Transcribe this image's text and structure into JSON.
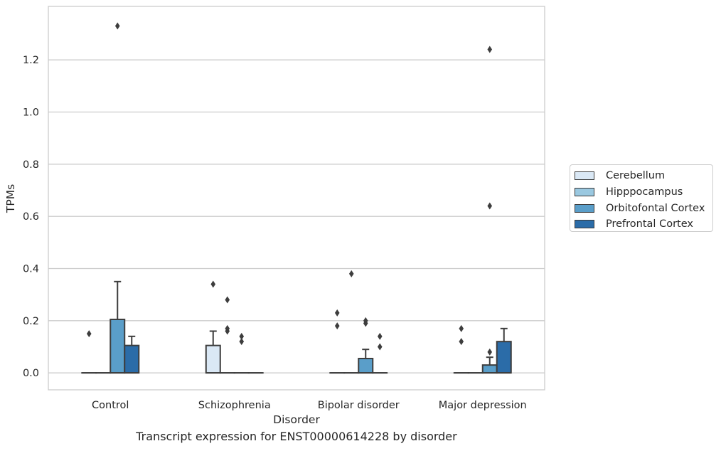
{
  "chart_data": {
    "type": "box",
    "xlabel": "Disorder",
    "ylabel": "TPMs",
    "caption": "Transcript expression for ENST00000614228 by disorder",
    "ylim": [
      -0.065,
      1.405
    ],
    "yticks": [
      0.0,
      0.2,
      0.4,
      0.6,
      0.8,
      1.0,
      1.2
    ],
    "ytick_labels": [
      "0.0",
      "0.2",
      "0.4",
      "0.6",
      "0.8",
      "1.0",
      "1.2"
    ],
    "grid": true,
    "legend_position": "right",
    "categories": [
      "Control",
      "Schizophrenia",
      "Bipolar disorder",
      "Major depression"
    ],
    "series": [
      {
        "name": "Cerebellum",
        "color": "#dae8f5",
        "boxes": [
          {
            "q1": 0,
            "q3": 0,
            "whisker_low": 0,
            "whisker_high": 0,
            "median": 0,
            "outliers": [
              0.15
            ]
          },
          {
            "q1": 0,
            "q3": 0.105,
            "whisker_low": 0,
            "whisker_high": 0.16,
            "median": 0,
            "outliers": [
              0.34
            ]
          },
          {
            "q1": 0,
            "q3": 0,
            "whisker_low": 0,
            "whisker_high": 0,
            "median": 0,
            "outliers": [
              0.18,
              0.23
            ]
          },
          {
            "q1": 0,
            "q3": 0,
            "whisker_low": 0,
            "whisker_high": 0,
            "median": 0,
            "outliers": [
              0.12,
              0.17
            ]
          }
        ]
      },
      {
        "name": "Hipppocampus",
        "color": "#9ac8e0",
        "boxes": [
          {
            "q1": 0,
            "q3": 0,
            "whisker_low": 0,
            "whisker_high": 0,
            "median": 0,
            "outliers": []
          },
          {
            "q1": 0,
            "q3": 0,
            "whisker_low": 0,
            "whisker_high": 0,
            "median": 0,
            "outliers": [
              0.16,
              0.17,
              0.28
            ]
          },
          {
            "q1": 0,
            "q3": 0,
            "whisker_low": 0,
            "whisker_high": 0,
            "median": 0,
            "outliers": [
              0.38
            ]
          },
          {
            "q1": 0,
            "q3": 0,
            "whisker_low": 0,
            "whisker_high": 0,
            "median": 0,
            "outliers": []
          }
        ]
      },
      {
        "name": "Orbitofontal Cortex",
        "color": "#5a9ec9",
        "boxes": [
          {
            "q1": 0,
            "q3": 0.205,
            "whisker_low": 0,
            "whisker_high": 0.35,
            "median": 0,
            "outliers": [
              1.33
            ]
          },
          {
            "q1": 0,
            "q3": 0,
            "whisker_low": 0,
            "whisker_high": 0,
            "median": 0,
            "outliers": [
              0.12,
              0.14
            ]
          },
          {
            "q1": 0,
            "q3": 0.055,
            "whisker_low": 0,
            "whisker_high": 0.09,
            "median": 0,
            "outliers": [
              0.19,
              0.2
            ]
          },
          {
            "q1": 0,
            "q3": 0.03,
            "whisker_low": 0,
            "whisker_high": 0.06,
            "median": 0,
            "outliers": [
              0.08,
              0.64,
              1.24
            ]
          }
        ]
      },
      {
        "name": "Prefrontal Cortex",
        "color": "#2b6ca8",
        "boxes": [
          {
            "q1": 0,
            "q3": 0.105,
            "whisker_low": 0,
            "whisker_high": 0.14,
            "median": 0,
            "outliers": []
          },
          {
            "q1": 0,
            "q3": 0,
            "whisker_low": 0,
            "whisker_high": 0,
            "median": 0,
            "outliers": []
          },
          {
            "q1": 0,
            "q3": 0,
            "whisker_low": 0,
            "whisker_high": 0,
            "median": 0,
            "outliers": [
              0.1,
              0.14
            ]
          },
          {
            "q1": 0,
            "q3": 0.12,
            "whisker_low": 0,
            "whisker_high": 0.17,
            "median": 0,
            "outliers": []
          }
        ]
      }
    ]
  }
}
